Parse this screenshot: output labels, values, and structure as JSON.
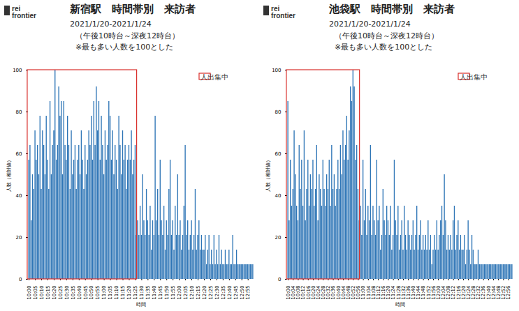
{
  "chart_data": [
    {
      "type": "bar",
      "logo": "rei frontier",
      "title": "新宿駅　時間帯別　来訪者",
      "subtitle": [
        "2021/1/20-2021/1/24",
        "（午後10時台～深夜12時台）",
        "※最も多い人数を100とした"
      ],
      "x_label": "時間",
      "y_label": "人数（相対値）",
      "color": "#2e75b6",
      "grid": false,
      "ylim": [
        0,
        100
      ],
      "yticks": [
        0,
        20,
        40,
        60,
        80,
        100
      ],
      "highlight": {
        "label": "人出集中",
        "start": "10:00",
        "end": "11:25"
      },
      "categories": [
        "10:00",
        null,
        null,
        null,
        null,
        "10:05",
        null,
        null,
        null,
        null,
        "10:10",
        null,
        null,
        null,
        null,
        "10:15",
        null,
        null,
        null,
        null,
        "10:20",
        null,
        null,
        null,
        null,
        "10:25",
        null,
        null,
        null,
        null,
        "10:30",
        null,
        null,
        null,
        null,
        "10:35",
        null,
        null,
        null,
        null,
        "10:40",
        null,
        null,
        null,
        null,
        "10:45",
        null,
        null,
        null,
        null,
        "10:50",
        null,
        null,
        null,
        null,
        "10:55",
        null,
        null,
        null,
        null,
        "11:00",
        null,
        null,
        null,
        null,
        "11:05",
        null,
        null,
        null,
        null,
        "11:10",
        null,
        null,
        null,
        null,
        "11:15",
        null,
        null,
        null,
        null,
        "11:20",
        null,
        null,
        null,
        null,
        "11:25",
        null,
        null,
        null,
        null,
        "11:30",
        null,
        null,
        null,
        null,
        "11:35",
        null,
        null,
        null,
        null,
        "11:40",
        null,
        null,
        null,
        null,
        "11:45",
        null,
        null,
        null,
        null,
        "11:50",
        null,
        null,
        null,
        null,
        "11:55",
        null,
        null,
        null,
        null,
        "12:00",
        null,
        null,
        null,
        null,
        "12:05",
        null,
        null,
        null,
        null,
        "12:10",
        null,
        null,
        null,
        null,
        "12:15",
        null,
        null,
        null,
        null,
        "12:20",
        null,
        null,
        null,
        null,
        "12:25",
        null,
        null,
        null,
        null,
        "12:30",
        null,
        null,
        null,
        null,
        "12:35",
        null,
        null,
        null,
        null,
        "12:40",
        null,
        null,
        null,
        null,
        "12:45",
        null,
        null,
        null,
        null,
        "12:50",
        null,
        null,
        null,
        null,
        "12:55",
        null,
        null,
        null,
        null
      ],
      "values": [
        57,
        64,
        28,
        50,
        43,
        71,
        57,
        64,
        50,
        78,
        43,
        71,
        64,
        50,
        78,
        57,
        43,
        85,
        50,
        64,
        71,
        100,
        57,
        64,
        92,
        78,
        85,
        50,
        85,
        64,
        57,
        78,
        64,
        43,
        71,
        50,
        57,
        64,
        43,
        57,
        64,
        50,
        71,
        57,
        43,
        64,
        50,
        57,
        71,
        64,
        78,
        57,
        85,
        64,
        92,
        71,
        85,
        57,
        78,
        64,
        50,
        71,
        57,
        64,
        85,
        78,
        57,
        71,
        50,
        64,
        57,
        43,
        78,
        64,
        50,
        71,
        57,
        64,
        43,
        57,
        64,
        57,
        71,
        50,
        57,
        64,
        21,
        28,
        21,
        35,
        21,
        50,
        28,
        21,
        43,
        28,
        21,
        35,
        14,
        28,
        21,
        78,
        28,
        43,
        21,
        57,
        28,
        21,
        35,
        14,
        28,
        21,
        43,
        57,
        21,
        28,
        14,
        35,
        21,
        50,
        21,
        28,
        14,
        21,
        35,
        64,
        21,
        28,
        14,
        21,
        28,
        14,
        21,
        43,
        14,
        21,
        28,
        14,
        21,
        14,
        14,
        21,
        7,
        14,
        21,
        7,
        14,
        7,
        21,
        7,
        14,
        7,
        21,
        7,
        14,
        7,
        7,
        14,
        7,
        7,
        14,
        7,
        7,
        21,
        7,
        7,
        14,
        7,
        7,
        7,
        7,
        7,
        7,
        7,
        7,
        7,
        7,
        7,
        7,
        7
      ]
    },
    {
      "type": "bar",
      "logo": "rei frontier",
      "title": "池袋駅　時間帯別　来訪者",
      "subtitle": [
        "2021/1/20-2021/1/24",
        "（午後10時台～深夜12時台）",
        "※最も多い人数を100とした"
      ],
      "x_label": "時間",
      "y_label": "人数（相対値）",
      "color": "#2e75b6",
      "grid": false,
      "ylim": [
        0,
        100
      ],
      "yticks": [
        0,
        20,
        40,
        60,
        80,
        100
      ],
      "highlight": {
        "label": "人出集中",
        "start": "10:00",
        "end": "10:56"
      },
      "categories": [
        "10:00",
        null,
        null,
        null,
        "10:04",
        null,
        null,
        null,
        "10:08",
        null,
        null,
        null,
        "10:12",
        null,
        null,
        null,
        "10:16",
        null,
        null,
        null,
        "10:20",
        null,
        null,
        null,
        "10:24",
        null,
        null,
        null,
        "10:28",
        null,
        null,
        null,
        "10:32",
        null,
        null,
        null,
        "10:36",
        null,
        null,
        null,
        "10:40",
        null,
        null,
        null,
        "10:44",
        null,
        null,
        null,
        "10:48",
        null,
        null,
        null,
        "10:52",
        null,
        null,
        null,
        "10:56",
        null,
        null,
        null,
        "11:00",
        null,
        null,
        null,
        "11:04",
        null,
        null,
        null,
        "11:08",
        null,
        null,
        null,
        "11:12",
        null,
        null,
        null,
        "11:16",
        null,
        null,
        null,
        "11:20",
        null,
        null,
        null,
        "11:24",
        null,
        null,
        null,
        "11:28",
        null,
        null,
        null,
        "11:32",
        null,
        null,
        null,
        "11:36",
        null,
        null,
        null,
        "11:40",
        null,
        null,
        null,
        "11:44",
        null,
        null,
        null,
        "11:48",
        null,
        null,
        null,
        "11:52",
        null,
        null,
        null,
        "11:56",
        null,
        null,
        null,
        "12:00",
        null,
        null,
        null,
        "12:04",
        null,
        null,
        null,
        "12:08",
        null,
        null,
        null,
        "12:12",
        null,
        null,
        null,
        "12:16",
        null,
        null,
        null,
        "12:20",
        null,
        null,
        null,
        "12:24",
        null,
        null,
        null,
        "12:28",
        null,
        null,
        null,
        "12:32",
        null,
        null,
        null,
        "12:36",
        null,
        null,
        null,
        "12:40",
        null,
        null,
        null,
        "12:44",
        null,
        null,
        null,
        "12:48",
        null,
        null,
        null,
        "12:52",
        null,
        null,
        null,
        "12:56",
        null,
        null,
        null
      ],
      "values": [
        85,
        28,
        57,
        35,
        43,
        71,
        50,
        35,
        28,
        64,
        43,
        57,
        35,
        71,
        28,
        43,
        57,
        35,
        50,
        43,
        57,
        35,
        43,
        64,
        28,
        50,
        43,
        35,
        57,
        43,
        35,
        50,
        43,
        57,
        35,
        64,
        43,
        50,
        35,
        43,
        57,
        43,
        64,
        50,
        71,
        57,
        64,
        78,
        57,
        71,
        92,
        85,
        100,
        92,
        57,
        64,
        43,
        28,
        35,
        21,
        57,
        28,
        43,
        21,
        35,
        28,
        64,
        21,
        35,
        28,
        21,
        57,
        28,
        35,
        14,
        21,
        43,
        28,
        21,
        35,
        28,
        21,
        35,
        14,
        21,
        57,
        28,
        21,
        35,
        14,
        21,
        28,
        14,
        35,
        21,
        14,
        28,
        21,
        14,
        21,
        28,
        14,
        21,
        35,
        14,
        21,
        28,
        14,
        21,
        14,
        21,
        14,
        28,
        14,
        21,
        7,
        14,
        21,
        14,
        28,
        14,
        21,
        28,
        35,
        21,
        50,
        28,
        14,
        21,
        14,
        21,
        14,
        28,
        35,
        14,
        21,
        28,
        14,
        21,
        14,
        14,
        21,
        7,
        14,
        28,
        14,
        7,
        21,
        14,
        7,
        7,
        7,
        14,
        7,
        7,
        7,
        7,
        7,
        7,
        7,
        7,
        7,
        7,
        7,
        7,
        7,
        7,
        7,
        7,
        7,
        7,
        7,
        7,
        7,
        7,
        7,
        7,
        7,
        7,
        7
      ]
    }
  ]
}
